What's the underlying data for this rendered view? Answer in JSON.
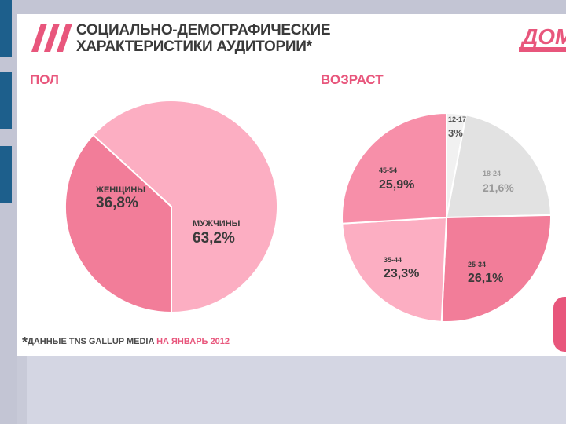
{
  "header": {
    "title_line1": "СОЦИАЛЬНО-ДЕМОГРАФИЧЕСКИЕ",
    "title_line2": "ХАРАКТЕРИСТИКИ АУДИТОРИИ*"
  },
  "logo": {
    "text": "ДОМ"
  },
  "colors": {
    "accent": "#e8567c",
    "pink_dark": "#f27d99",
    "pink_mid": "#f78fa9",
    "pink_light": "#fcaec2",
    "grey": "#e2e2e2",
    "grey_light": "#f1f1f1",
    "sidebar": "#1d5f8c"
  },
  "chart_data": [
    {
      "type": "pie",
      "title": "ПОЛ",
      "categories": [
        "ЖЕНЩИНЫ",
        "МУЖЧИНЫ"
      ],
      "values": [
        36.8,
        63.2
      ],
      "value_labels": [
        "36,8%",
        "63,2%"
      ],
      "start_angle_deg": 180
    },
    {
      "type": "pie",
      "title": "ВОЗРАСТ",
      "categories": [
        "12-17",
        "18-24",
        "25-34",
        "35-44",
        "45-54"
      ],
      "values": [
        3,
        21.6,
        26.1,
        23.3,
        25.9
      ],
      "value_labels": [
        "3%",
        "21,6%",
        "26,1%",
        "23,3%",
        "25,9%"
      ],
      "start_angle_deg": 0
    }
  ],
  "footnote": {
    "star": "*",
    "text": "ДАННЫЕ TNS GALLUP MEDIA ",
    "accent_text": "НА ЯНВАРЬ 2012"
  }
}
